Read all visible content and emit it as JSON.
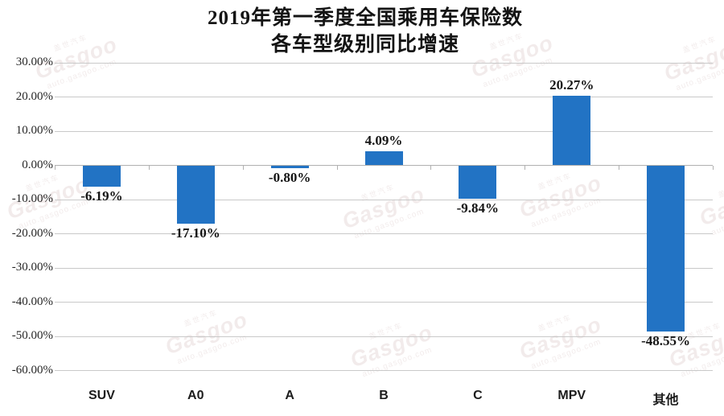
{
  "page": {
    "background": "#ffffff"
  },
  "chart_data": {
    "type": "bar",
    "title": "2019年第一季度全国乘用车保险数 各车型级别同比增速",
    "title_lines": [
      "2019年第一季度全国乘用车保险数",
      "各车型级别同比增速"
    ],
    "categories": [
      "SUV",
      "A0",
      "A",
      "B",
      "C",
      "MPV",
      "其他"
    ],
    "values": [
      -6.19,
      -17.1,
      -0.8,
      4.09,
      -9.84,
      20.27,
      -48.55
    ],
    "value_labels": [
      "-6.19%",
      "-17.10%",
      "-0.80%",
      "4.09%",
      "-9.84%",
      "20.27%",
      "-48.55%"
    ],
    "ylim": [
      -60,
      30
    ],
    "ytick_step": 10,
    "ytick_labels": [
      "30.00%",
      "20.00%",
      "10.00%",
      "0.00%",
      "-10.00%",
      "-20.00%",
      "-30.00%",
      "-40.00%",
      "-50.00%",
      "-60.00%"
    ],
    "grid": true,
    "legend": "none",
    "bar_color": "#2273C4",
    "gridline_color": "#c9c9c9",
    "axis_color": "#b0b0b0",
    "text_color": "#141414"
  },
  "watermark": {
    "cn": "盖世汽车",
    "logo": "Gasgoo",
    "url": "auto.gasgoo.com"
  }
}
